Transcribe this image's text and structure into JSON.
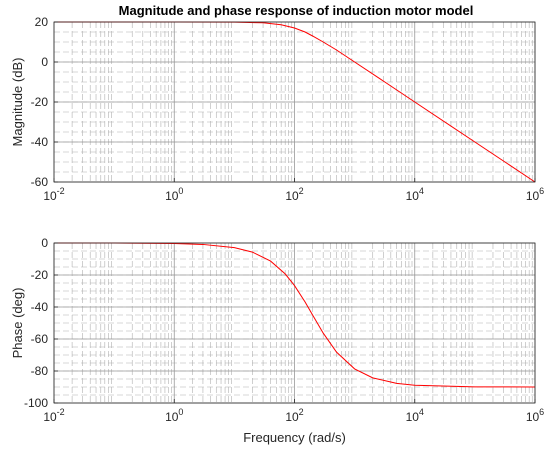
{
  "chart_data": [
    {
      "type": "line",
      "title": "Magnitude and phase response of induction motor model",
      "xlabel": "",
      "ylabel": "Magnitude (dB)",
      "x_scale": "log",
      "xlim": [
        0.01,
        1000000
      ],
      "ylim": [
        -60,
        20
      ],
      "grid": true,
      "x_ticks": [
        {
          "base": "10",
          "exp": "-2",
          "value": 0.01
        },
        {
          "base": "10",
          "exp": "0",
          "value": 1
        },
        {
          "base": "10",
          "exp": "2",
          "value": 100
        },
        {
          "base": "10",
          "exp": "4",
          "value": 10000
        },
        {
          "base": "10",
          "exp": "6",
          "value": 1000000
        }
      ],
      "y_ticks": [
        {
          "label": "20",
          "value": 20
        },
        {
          "label": "0",
          "value": 0
        },
        {
          "label": "-20",
          "value": -20
        },
        {
          "label": "-40",
          "value": -40
        },
        {
          "label": "-60",
          "value": -60
        }
      ],
      "series": [
        {
          "color": "#ff0000",
          "x": [
            0.01,
            0.1,
            1,
            10,
            30,
            60,
            100,
            150,
            200,
            300,
            500,
            1000,
            3000,
            10000,
            100000,
            1000000
          ],
          "y": [
            20,
            20,
            20,
            19.96,
            19.6,
            18.6,
            17.0,
            15.0,
            13.0,
            10.0,
            6.0,
            0.0,
            -9.5,
            -20,
            -40,
            -60
          ]
        }
      ]
    },
    {
      "type": "line",
      "title": "",
      "xlabel": "Frequency (rad/s)",
      "ylabel": "Phase (deg)",
      "x_scale": "log",
      "xlim": [
        0.01,
        1000000
      ],
      "ylim": [
        -100,
        0
      ],
      "grid": true,
      "x_ticks": [
        {
          "base": "10",
          "exp": "-2",
          "value": 0.01
        },
        {
          "base": "10",
          "exp": "0",
          "value": 1
        },
        {
          "base": "10",
          "exp": "2",
          "value": 100
        },
        {
          "base": "10",
          "exp": "4",
          "value": 10000
        },
        {
          "base": "10",
          "exp": "6",
          "value": 1000000
        }
      ],
      "y_ticks": [
        {
          "label": "0",
          "value": 0
        },
        {
          "label": "-20",
          "value": -20
        },
        {
          "label": "-40",
          "value": -40
        },
        {
          "label": "-60",
          "value": -60
        },
        {
          "label": "-80",
          "value": -80
        },
        {
          "label": "-100",
          "value": -100
        }
      ],
      "series": [
        {
          "color": "#ff0000",
          "x": [
            0.01,
            0.1,
            1,
            3,
            10,
            20,
            40,
            70,
            100,
            150,
            200,
            300,
            500,
            1000,
            2000,
            5000,
            10000,
            100000,
            1000000
          ],
          "y": [
            0,
            -0.03,
            -0.29,
            -0.9,
            -2.9,
            -5.7,
            -11.3,
            -19.3,
            -26.6,
            -36.9,
            -45.0,
            -56.3,
            -68.2,
            -78.7,
            -84.3,
            -87.7,
            -88.9,
            -89.9,
            -90
          ]
        }
      ]
    }
  ]
}
